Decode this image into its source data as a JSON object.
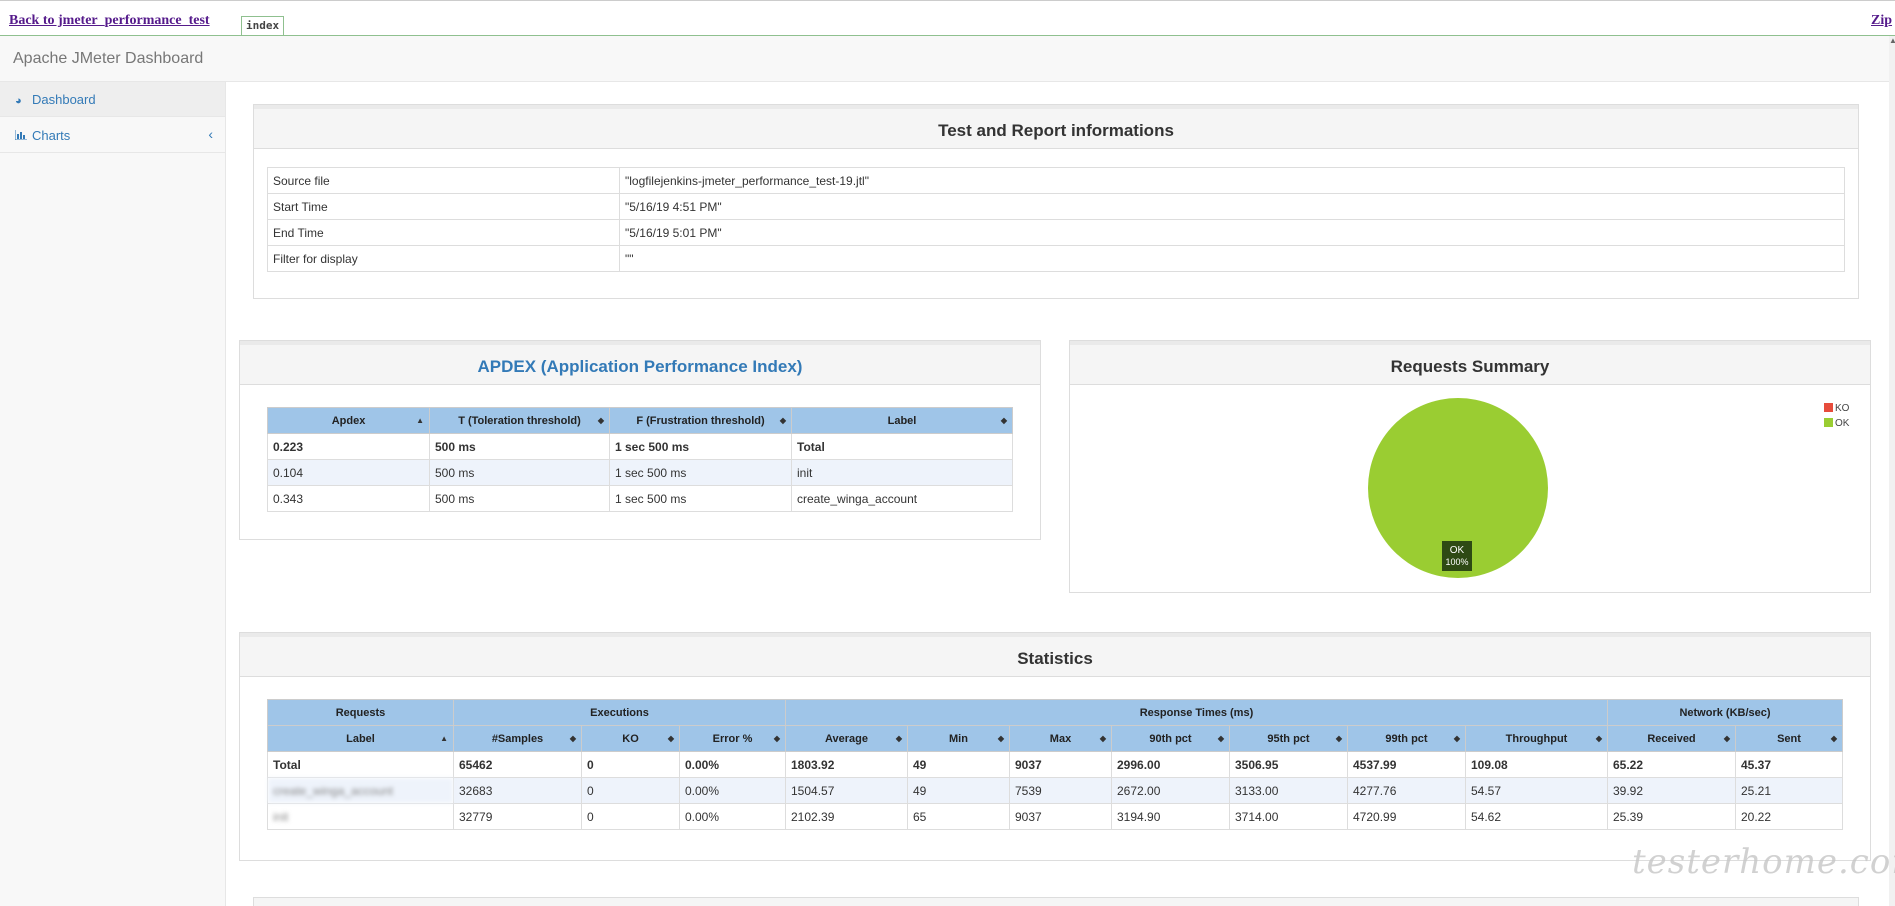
{
  "topbar": {
    "back_label": "Back to jmeter_performance_test",
    "tab_label": "index",
    "zip_label": "Zip"
  },
  "header": {
    "brand": "Apache JMeter Dashboard"
  },
  "sidebar": {
    "items": [
      {
        "label": "Dashboard",
        "icon": "dashboard-icon"
      },
      {
        "label": "Charts",
        "icon": "bar-chart-icon"
      }
    ]
  },
  "info": {
    "title": "Test and Report informations",
    "rows": [
      {
        "key": "Source file",
        "value": "\"logfilejenkins-jmeter_performance_test-19.jtl\""
      },
      {
        "key": "Start Time",
        "value": "\"5/16/19 4:51 PM\""
      },
      {
        "key": "End Time",
        "value": "\"5/16/19 5:01 PM\""
      },
      {
        "key": "Filter for display",
        "value": "\"\""
      }
    ]
  },
  "apdex": {
    "title": "APDEX (Application Performance Index)",
    "headers": [
      "Apdex",
      "T (Toleration threshold)",
      "F (Frustration threshold)",
      "Label"
    ],
    "rows": [
      [
        "0.223",
        "500 ms",
        "1 sec 500 ms",
        "Total"
      ],
      [
        "0.104",
        "500 ms",
        "1 sec 500 ms",
        "init"
      ],
      [
        "0.343",
        "500 ms",
        "1 sec 500 ms",
        "create_winga_account"
      ]
    ]
  },
  "summary": {
    "title": "Requests Summary",
    "legend": [
      {
        "label": "KO",
        "color": "#e74c3c"
      },
      {
        "label": "OK",
        "color": "#9acd32"
      }
    ],
    "slice_label": "OK",
    "slice_pct": "100%"
  },
  "chart_data": {
    "type": "pie",
    "slices": [
      {
        "label": "KO",
        "value": 0
      },
      {
        "label": "OK",
        "value": 100
      }
    ],
    "title": "Requests Summary"
  },
  "stats": {
    "title": "Statistics",
    "groups": [
      "Requests",
      "Executions",
      "Response Times (ms)",
      "Network (KB/sec)"
    ],
    "headers": [
      "Label",
      "#Samples",
      "KO",
      "Error %",
      "Average",
      "Min",
      "Max",
      "90th pct",
      "95th pct",
      "99th pct",
      "Throughput",
      "Received",
      "Sent"
    ],
    "rows": [
      [
        "Total",
        "65462",
        "0",
        "0.00%",
        "1803.92",
        "49",
        "9037",
        "2996.00",
        "3506.95",
        "4537.99",
        "109.08",
        "65.22",
        "45.37"
      ],
      [
        "create_winga_account",
        "32683",
        "0",
        "0.00%",
        "1504.57",
        "49",
        "7539",
        "2672.00",
        "3133.00",
        "4277.76",
        "54.57",
        "39.92",
        "25.21"
      ],
      [
        "init",
        "32779",
        "0",
        "0.00%",
        "2102.39",
        "65",
        "9037",
        "3194.90",
        "3714.00",
        "4720.99",
        "54.62",
        "25.39",
        "20.22"
      ]
    ]
  },
  "watermark": "testerhome.com"
}
